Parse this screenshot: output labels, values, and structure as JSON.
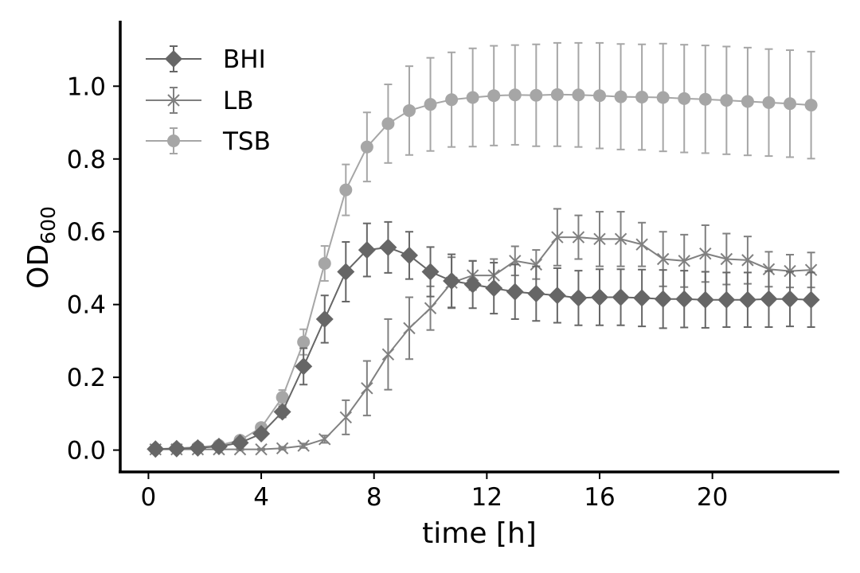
{
  "chart_data": {
    "type": "line",
    "xlabel": "time [h]",
    "ylabel": {
      "main": "OD",
      "sub": "600"
    },
    "xlim": [
      -1,
      24.5
    ],
    "ylim": [
      -0.06,
      1.18
    ],
    "xticks": [
      0,
      4,
      8,
      12,
      16,
      20
    ],
    "yticks": [
      0.0,
      0.2,
      0.4,
      0.6,
      0.8,
      1.0
    ],
    "ytick_labels": [
      "0.0",
      "0.2",
      "0.4",
      "0.6",
      "0.8",
      "1.0"
    ],
    "grid": false,
    "legend_position": "top-left",
    "x": [
      0.25,
      1.0,
      1.75,
      2.5,
      3.25,
      4.0,
      4.75,
      5.5,
      6.25,
      7.0,
      7.75,
      8.5,
      9.25,
      10.0,
      10.75,
      11.5,
      12.25,
      13.0,
      13.75,
      14.5,
      15.25,
      16.0,
      16.75,
      17.5,
      18.25,
      19.0,
      19.75,
      20.5,
      21.25,
      22.0,
      22.75,
      23.5
    ],
    "series": [
      {
        "name": "BHI",
        "marker": "diamond",
        "color": "#666666",
        "values": [
          0.003,
          0.004,
          0.006,
          0.01,
          0.02,
          0.045,
          0.105,
          0.23,
          0.36,
          0.49,
          0.55,
          0.557,
          0.535,
          0.49,
          0.465,
          0.455,
          0.445,
          0.435,
          0.43,
          0.425,
          0.418,
          0.42,
          0.42,
          0.418,
          0.415,
          0.415,
          0.413,
          0.413,
          0.413,
          0.415,
          0.415,
          0.413
        ],
        "errors": [
          0.002,
          0.002,
          0.003,
          0.004,
          0.005,
          0.01,
          0.015,
          0.05,
          0.065,
          0.082,
          0.073,
          0.07,
          0.065,
          0.068,
          0.073,
          0.065,
          0.07,
          0.075,
          0.075,
          0.075,
          0.075,
          0.077,
          0.077,
          0.078,
          0.08,
          0.078,
          0.077,
          0.075,
          0.075,
          0.077,
          0.075,
          0.075
        ]
      },
      {
        "name": "LB",
        "marker": "x",
        "color": "#808080",
        "values": [
          0.002,
          0.002,
          0.002,
          0.002,
          0.002,
          0.002,
          0.005,
          0.012,
          0.03,
          0.09,
          0.17,
          0.263,
          0.335,
          0.39,
          0.46,
          0.48,
          0.48,
          0.52,
          0.51,
          0.585,
          0.585,
          0.58,
          0.58,
          0.565,
          0.525,
          0.52,
          0.54,
          0.525,
          0.522,
          0.497,
          0.492,
          0.495
        ],
        "errors": [
          0.002,
          0.002,
          0.002,
          0.002,
          0.002,
          0.002,
          0.004,
          0.006,
          0.01,
          0.047,
          0.075,
          0.097,
          0.085,
          0.06,
          0.07,
          0.04,
          0.045,
          0.04,
          0.04,
          0.078,
          0.06,
          0.075,
          0.075,
          0.06,
          0.075,
          0.072,
          0.078,
          0.07,
          0.065,
          0.048,
          0.045,
          0.048
        ]
      },
      {
        "name": "TSB",
        "marker": "circle",
        "color": "#a6a6a6",
        "values": [
          0.003,
          0.005,
          0.008,
          0.013,
          0.027,
          0.062,
          0.145,
          0.297,
          0.513,
          0.715,
          0.833,
          0.897,
          0.933,
          0.95,
          0.963,
          0.969,
          0.974,
          0.976,
          0.975,
          0.977,
          0.976,
          0.974,
          0.971,
          0.97,
          0.969,
          0.966,
          0.964,
          0.961,
          0.958,
          0.955,
          0.952,
          0.948
        ],
        "errors": [
          0.002,
          0.002,
          0.003,
          0.004,
          0.006,
          0.01,
          0.02,
          0.035,
          0.048,
          0.07,
          0.095,
          0.108,
          0.122,
          0.128,
          0.13,
          0.135,
          0.137,
          0.137,
          0.14,
          0.142,
          0.143,
          0.145,
          0.145,
          0.145,
          0.148,
          0.148,
          0.148,
          0.148,
          0.148,
          0.147,
          0.147,
          0.147
        ]
      }
    ]
  }
}
